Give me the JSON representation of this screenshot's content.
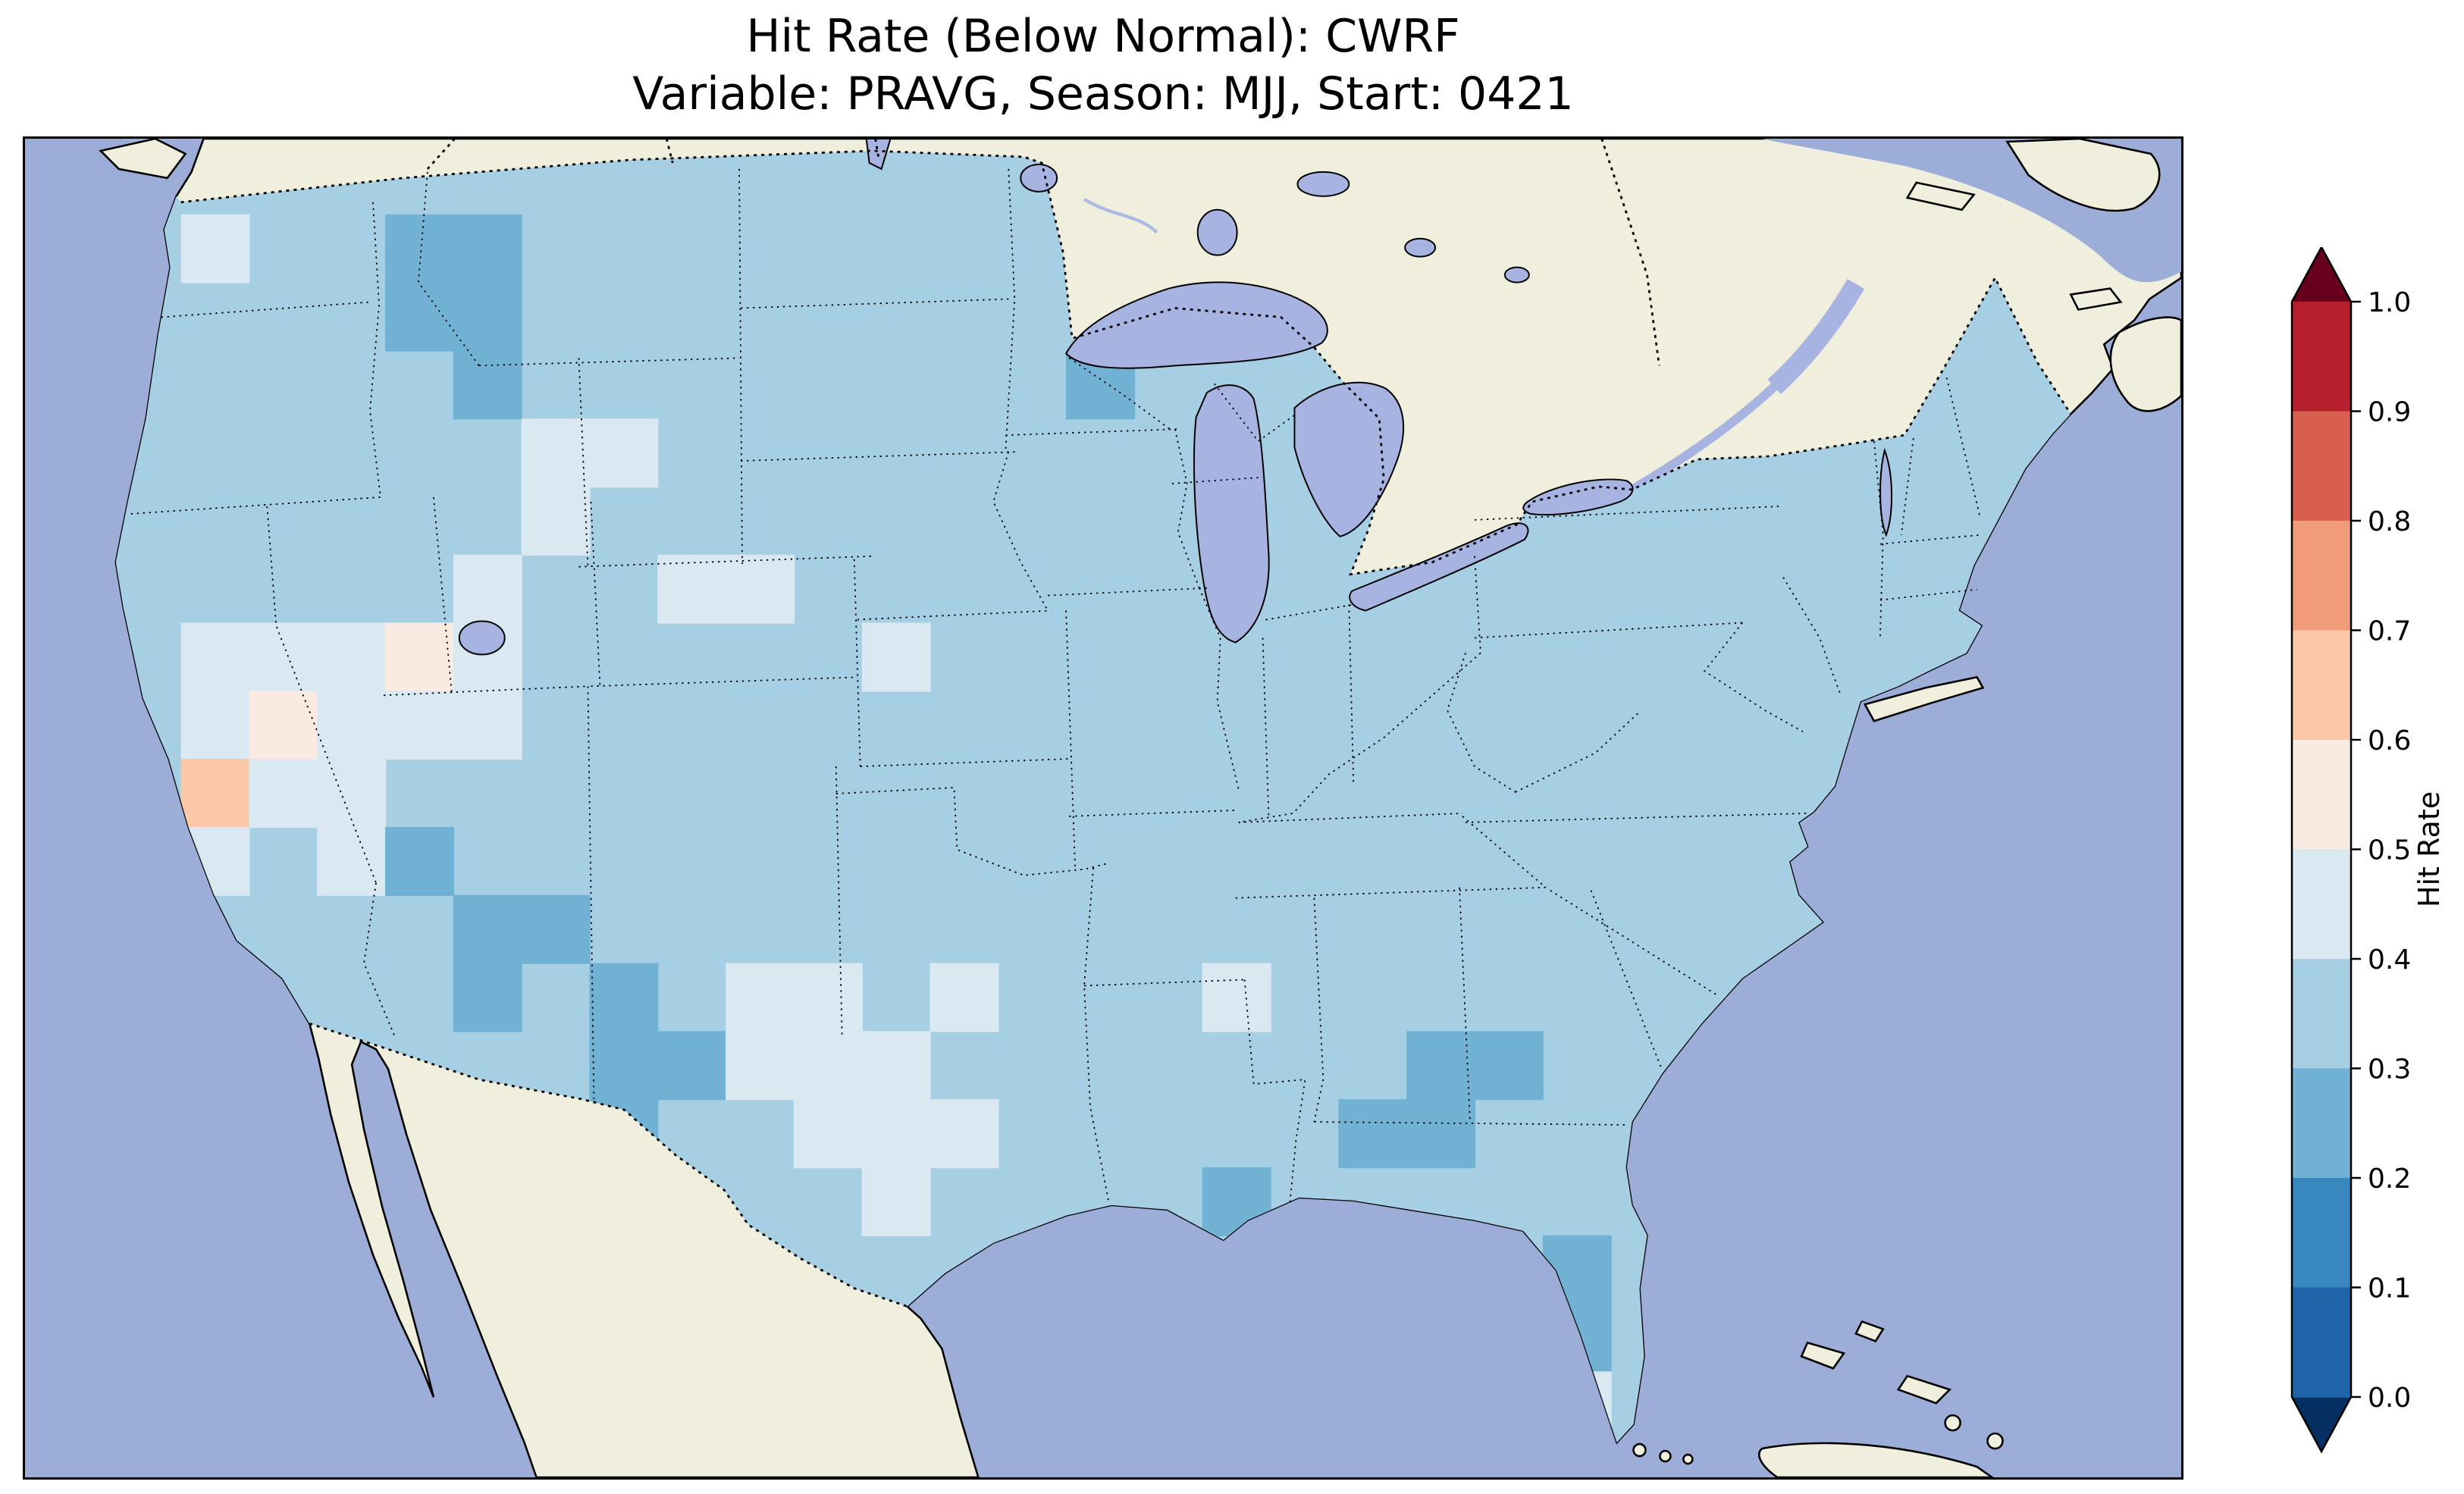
{
  "figure": {
    "title_line1": "Hit Rate (Below Normal): CWRF",
    "title_line2": "Variable: PRAVG, Season: MJJ, Start: 0421"
  },
  "colorbar": {
    "label": "Hit Rate",
    "ticks": [
      "1.0",
      "0.9",
      "0.8",
      "0.7",
      "0.6",
      "0.5",
      "0.4",
      "0.3",
      "0.2",
      "0.1",
      "0.0"
    ],
    "extend_high_color": "#67001f",
    "extend_low_color": "#053061",
    "segment_colors_top_to_bottom": [
      "#b51f2e",
      "#d85f4d",
      "#f09c7b",
      "#fbc7a9",
      "#f9ebe1",
      "#d9e8f1",
      "#a7cfe4",
      "#71b2d4",
      "#3887bf",
      "#1f63a8"
    ]
  },
  "map_colors": {
    "ocean": "#9cadd8",
    "land": "#f0eedc",
    "lakes": "#a7b4e2",
    "coastline": "#000000"
  },
  "chart_data": {
    "type": "heatmap",
    "title": "Hit Rate (Below Normal): CWRF",
    "subtitle": "Variable: PRAVG, Season: MJJ, Start: 0421",
    "model": "CWRF",
    "metric": "Hit Rate (Below Normal)",
    "variable": "PRAVG",
    "season": "MJJ",
    "start": "0421",
    "region": "Continental United States (CONUS)",
    "colorbar_label": "Hit Rate",
    "value_range": [
      0.0,
      1.0
    ],
    "colorbar_extend": "both",
    "legend_position": "right",
    "bins": [
      {
        "index": 0,
        "range": [
          0.0,
          0.1
        ],
        "color": "#1f63a8"
      },
      {
        "index": 1,
        "range": [
          0.1,
          0.2
        ],
        "color": "#3887bf"
      },
      {
        "index": 2,
        "range": [
          0.2,
          0.3
        ],
        "color": "#71b2d4"
      },
      {
        "index": 3,
        "range": [
          0.3,
          0.4
        ],
        "color": "#a7cfe4"
      },
      {
        "index": 4,
        "range": [
          0.4,
          0.5
        ],
        "color": "#d9e8f1"
      },
      {
        "index": 5,
        "range": [
          0.5,
          0.6
        ],
        "color": "#f9ebe1"
      },
      {
        "index": 6,
        "range": [
          0.6,
          0.7
        ],
        "color": "#fbc7a9"
      },
      {
        "index": 7,
        "range": [
          0.7,
          0.8
        ],
        "color": "#f09c7b"
      },
      {
        "index": 8,
        "range": [
          0.8,
          0.9
        ],
        "color": "#d85f4d"
      },
      {
        "index": 9,
        "range": [
          0.9,
          1.0
        ],
        "color": "#b51f2e"
      }
    ],
    "dominant_bin": {
      "range": [
        0.3,
        0.4
      ],
      "note": "Most of CONUS shows hit rate 0.3-0.4; pale 0.4-0.5 patches over Nevada, Wyoming, Colorado, west Texas; darker 0.2-0.3 patches over Montana/Idaho, Arizona, New Mexico, Georgia, central Florida and the Boston-NYC coast; one 0.6-0.7 cell in eastern California."
    },
    "grid": {
      "note": "Coarse spatial approximation of the gridded hit-rate field over CONUS. Each character is one cell, west to east per row, rows north to south; digit d means hit rate in [d/10,(d+1)/10).",
      "cols": 29,
      "rows": 19,
      "rows_encoded": [
        "33333333333333333333333333333",
        "34332233333333333333333333333",
        "33332233333333333333333333333",
        "33333233333333233333333333333",
        "33333344333333333333333333333",
        "33333343333333333333333333333",
        "33333433443333333333333333333",
        "34445433333433333333333333333",
        "34544433333333333333333333333",
        "36443333333333333333333333333",
        "34342333333333333333333333333",
        "33333223333333333333333333333",
        "33333232344343334333333333333",
        "33333332244433333332233333333",
        "33333332334443333322333333333",
        "33333333333433332333333333333",
        "33333333333333333333323333333",
        "33333333333333333333323333333",
        "33333333333333333333343333333"
      ]
    }
  }
}
